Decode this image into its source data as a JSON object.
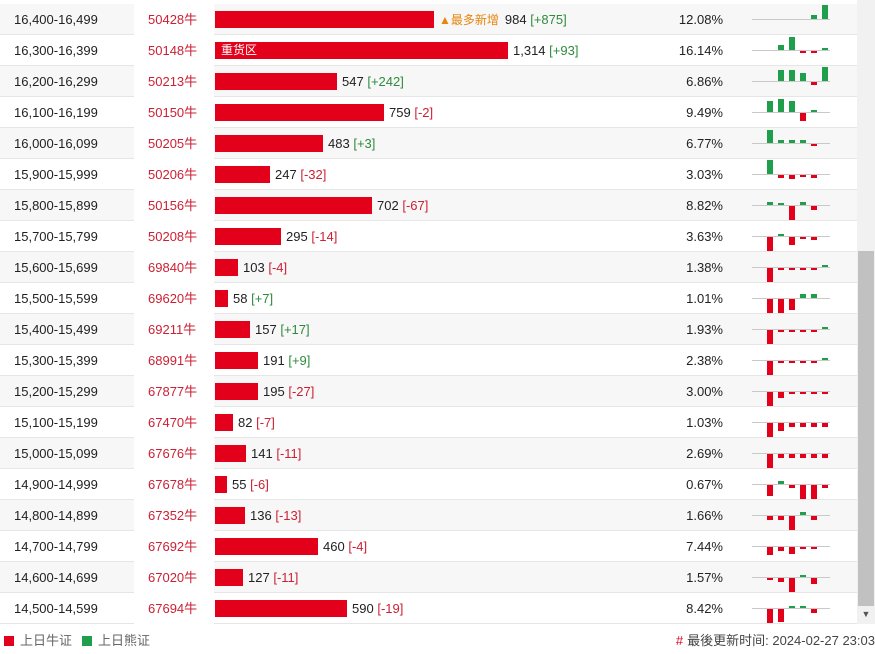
{
  "rows": [
    {
      "range": "16,400-16,499",
      "code": "50428牛",
      "value": 984,
      "value_text": "984",
      "change": "+875",
      "pct": "12.08%",
      "label": "",
      "tag": "▲最多新增",
      "spark": [
        0,
        0,
        0,
        0,
        0,
        0.25,
        1
      ]
    },
    {
      "range": "16,300-16,399",
      "code": "50148牛",
      "value": 1314,
      "value_text": "1,314",
      "change": "+93",
      "pct": "16.14%",
      "label": "重货区",
      "tag": "",
      "spark": [
        0,
        0,
        0.35,
        0.9,
        -0.1,
        -0.1,
        0.15
      ]
    },
    {
      "range": "16,200-16,299",
      "code": "50213牛",
      "value": 547,
      "value_text": "547",
      "change": "+242",
      "pct": "6.86%",
      "label": "",
      "tag": "",
      "spark": [
        0,
        0,
        0.8,
        0.8,
        0.6,
        -0.2,
        1
      ]
    },
    {
      "range": "16,100-16,199",
      "code": "50150牛",
      "value": 759,
      "value_text": "759",
      "change": "-2",
      "pct": "9.49%",
      "label": "",
      "tag": "",
      "spark": [
        0,
        0.8,
        0.9,
        0.8,
        -0.6,
        0.1,
        0
      ]
    },
    {
      "range": "16,000-16,099",
      "code": "50205牛",
      "value": 483,
      "value_text": "483",
      "change": "+3",
      "pct": "6.77%",
      "label": "",
      "tag": "",
      "spark": [
        0,
        0.95,
        0.2,
        0.2,
        0.2,
        -0.1,
        0
      ]
    },
    {
      "range": "15,900-15,999",
      "code": "50206牛",
      "value": 247,
      "value_text": "247",
      "change": "-32",
      "pct": "3.03%",
      "label": "",
      "tag": "",
      "spark": [
        0,
        1,
        -0.2,
        -0.3,
        -0.1,
        -0.2,
        0
      ]
    },
    {
      "range": "15,800-15,899",
      "code": "50156牛",
      "value": 702,
      "value_text": "702",
      "change": "-67",
      "pct": "8.82%",
      "label": "",
      "tag": "",
      "spark": [
        0,
        0.2,
        0.1,
        -1,
        0.2,
        -0.3,
        0
      ]
    },
    {
      "range": "15,700-15,799",
      "code": "50208牛",
      "value": 295,
      "value_text": "295",
      "change": "-14",
      "pct": "3.63%",
      "label": "",
      "tag": "",
      "spark": [
        0,
        -1,
        0.1,
        -0.6,
        -0.1,
        -0.2,
        0
      ]
    },
    {
      "range": "15,600-15,699",
      "code": "69840牛",
      "value": 103,
      "value_text": "103",
      "change": "-4",
      "pct": "1.38%",
      "label": "",
      "tag": "",
      "spark": [
        0,
        -1,
        -0.1,
        -0.1,
        -0.1,
        -0.1,
        0.1
      ]
    },
    {
      "range": "15,500-15,599",
      "code": "69620牛",
      "value": 58,
      "value_text": "58",
      "change": "+7",
      "pct": "1.01%",
      "label": "",
      "tag": "",
      "spark": [
        0,
        -1,
        -1,
        -0.8,
        0.3,
        0.3,
        0
      ]
    },
    {
      "range": "15,400-15,499",
      "code": "69211牛",
      "value": 157,
      "value_text": "157",
      "change": "+17",
      "pct": "1.93%",
      "label": "",
      "tag": "",
      "spark": [
        0,
        -1,
        -0.1,
        -0.1,
        -0.1,
        -0.1,
        0.1
      ]
    },
    {
      "range": "15,300-15,399",
      "code": "68991牛",
      "value": 191,
      "value_text": "191",
      "change": "+9",
      "pct": "2.38%",
      "label": "",
      "tag": "",
      "spark": [
        0,
        -1,
        -0.1,
        -0.1,
        -0.1,
        -0.1,
        0.1
      ]
    },
    {
      "range": "15,200-15,299",
      "code": "67877牛",
      "value": 195,
      "value_text": "195",
      "change": "-27",
      "pct": "3.00%",
      "label": "",
      "tag": "",
      "spark": [
        0,
        -1,
        -0.4,
        -0.1,
        -0.1,
        -0.1,
        -0.1
      ]
    },
    {
      "range": "15,100-15,199",
      "code": "67470牛",
      "value": 82,
      "value_text": "82",
      "change": "-7",
      "pct": "1.03%",
      "label": "",
      "tag": "",
      "spark": [
        0,
        -1,
        -0.6,
        -0.3,
        -0.3,
        -0.3,
        -0.3
      ]
    },
    {
      "range": "15,000-15,099",
      "code": "67676牛",
      "value": 141,
      "value_text": "141",
      "change": "-11",
      "pct": "2.69%",
      "label": "",
      "tag": "",
      "spark": [
        0,
        -1,
        -0.3,
        -0.3,
        -0.3,
        -0.3,
        -0.3
      ]
    },
    {
      "range": "14,900-14,999",
      "code": "67678牛",
      "value": 55,
      "value_text": "55",
      "change": "-6",
      "pct": "0.67%",
      "label": "",
      "tag": "",
      "spark": [
        0,
        -0.8,
        0.2,
        -0.2,
        -1,
        -1,
        -0.2
      ]
    },
    {
      "range": "14,800-14,899",
      "code": "67352牛",
      "value": 136,
      "value_text": "136",
      "change": "-13",
      "pct": "1.66%",
      "label": "",
      "tag": "",
      "spark": [
        0,
        -0.3,
        -0.3,
        -1,
        0.2,
        -0.3,
        0
      ]
    },
    {
      "range": "14,700-14,799",
      "code": "67692牛",
      "value": 460,
      "value_text": "460",
      "change": "-4",
      "pct": "7.44%",
      "label": "",
      "tag": "",
      "spark": [
        0,
        -0.6,
        -0.3,
        -0.5,
        -0.1,
        -0.1,
        0
      ]
    },
    {
      "range": "14,600-14,699",
      "code": "67020牛",
      "value": 127,
      "value_text": "127",
      "change": "-11",
      "pct": "1.57%",
      "label": "",
      "tag": "",
      "spark": [
        0,
        -0.1,
        -0.3,
        -1,
        0.1,
        -0.4,
        0
      ]
    },
    {
      "range": "14,500-14,599",
      "code": "67694牛",
      "value": 590,
      "value_text": "590",
      "change": "-19",
      "pct": "8.42%",
      "label": "",
      "tag": "",
      "spark": [
        0,
        -1,
        -0.9,
        0.1,
        0.1,
        -0.3,
        0
      ]
    }
  ],
  "bar_max_value": 1314,
  "colors": {
    "bull": "#e3001b",
    "bear": "#1f9e4c",
    "tag": "#e8850c"
  },
  "legend": {
    "bull_label": "上日牛证",
    "bear_label": "上日熊证"
  },
  "footer": {
    "updated_prefix": "#",
    "updated_label": "最後更新时间:",
    "updated_time": "2024-02-27 23:03"
  },
  "scroll_down_glyph": "▼"
}
